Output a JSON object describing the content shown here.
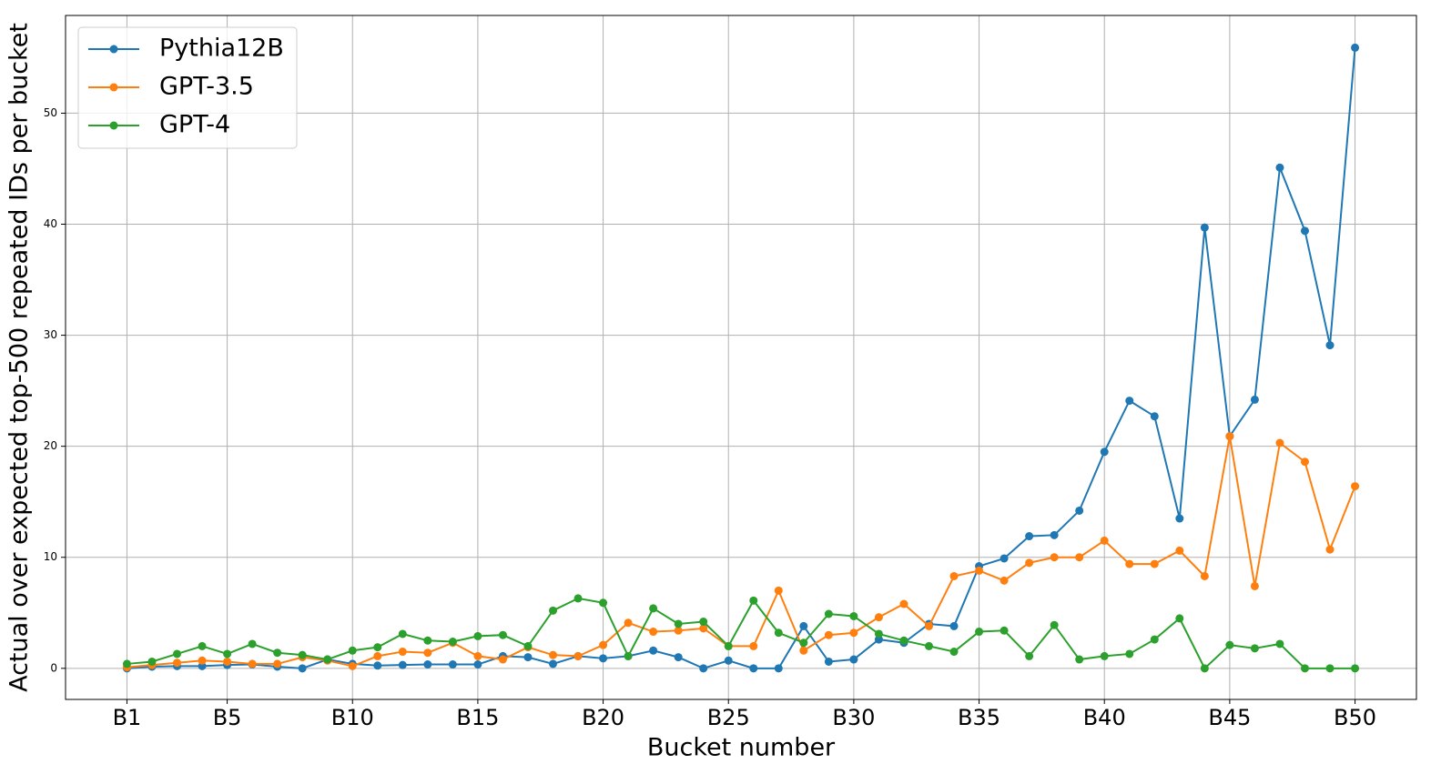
{
  "chart_data": {
    "type": "line",
    "xlabel": "Bucket number",
    "ylabel": "Actual over expected top-500 repeated IDs per bucket",
    "x": [
      1,
      2,
      3,
      4,
      5,
      6,
      7,
      8,
      9,
      10,
      11,
      12,
      13,
      14,
      15,
      16,
      17,
      18,
      19,
      20,
      21,
      22,
      23,
      24,
      25,
      26,
      27,
      28,
      29,
      30,
      31,
      32,
      33,
      34,
      35,
      36,
      37,
      38,
      39,
      40,
      41,
      42,
      43,
      44,
      45,
      46,
      47,
      48,
      49,
      50
    ],
    "series": [
      {
        "name": "Pythia12B",
        "color": "#1f77b4",
        "values": [
          0,
          0.15,
          0.2,
          0.2,
          0.3,
          0.35,
          0.15,
          0,
          0.8,
          0.4,
          0.25,
          0.3,
          0.35,
          0.35,
          0.35,
          1.1,
          1.0,
          0.4,
          1.1,
          0.9,
          1.1,
          1.6,
          1.0,
          0,
          0.7,
          0,
          0,
          3.8,
          0.6,
          0.8,
          2.6,
          2.3,
          4.0,
          3.8,
          9.2,
          9.9,
          11.9,
          12.0,
          14.2,
          19.5,
          24.1,
          22.7,
          13.5,
          39.7,
          20.9,
          24.2,
          45.1,
          39.4,
          29.1,
          55.9
        ]
      },
      {
        "name": "GPT-3.5",
        "color": "#ff7f0e",
        "values": [
          0.1,
          0.3,
          0.5,
          0.7,
          0.6,
          0.4,
          0.4,
          1.0,
          0.7,
          0.2,
          1.1,
          1.5,
          1.4,
          2.3,
          1.1,
          0.8,
          1.9,
          1.2,
          1.1,
          2.1,
          4.1,
          3.3,
          3.4,
          3.6,
          2.0,
          2.0,
          7.0,
          1.6,
          3.0,
          3.2,
          4.6,
          5.8,
          3.8,
          8.3,
          8.8,
          7.9,
          9.5,
          10.0,
          10.0,
          11.5,
          9.4,
          9.4,
          10.6,
          8.3,
          20.9,
          7.4,
          20.3,
          18.6,
          10.7,
          16.4
        ]
      },
      {
        "name": "GPT-4",
        "color": "#2ca02c",
        "values": [
          0.4,
          0.6,
          1.3,
          2.0,
          1.3,
          2.2,
          1.4,
          1.2,
          0.8,
          1.6,
          1.9,
          3.1,
          2.5,
          2.4,
          2.9,
          3.0,
          2.0,
          5.2,
          6.3,
          5.9,
          1.1,
          5.4,
          4.0,
          4.2,
          2.0,
          6.1,
          3.2,
          2.3,
          4.9,
          4.7,
          3.1,
          2.5,
          2.0,
          1.5,
          3.3,
          3.4,
          1.1,
          3.9,
          0.8,
          1.1,
          1.3,
          2.6,
          4.5,
          0,
          2.1,
          1.8,
          2.2,
          0,
          0,
          0
        ]
      }
    ],
    "xlim": [
      -1.45,
      52.45
    ],
    "xticks": [
      {
        "value": 1,
        "label": "B1"
      },
      {
        "value": 5,
        "label": "B5"
      },
      {
        "value": 10,
        "label": "B10"
      },
      {
        "value": 15,
        "label": "B15"
      },
      {
        "value": 20,
        "label": "B20"
      },
      {
        "value": 25,
        "label": "B25"
      },
      {
        "value": 30,
        "label": "B30"
      },
      {
        "value": 35,
        "label": "B35"
      },
      {
        "value": 40,
        "label": "B40"
      },
      {
        "value": 45,
        "label": "B45"
      },
      {
        "value": 50,
        "label": "B50"
      }
    ],
    "ylim": [
      -2.8,
      58.8
    ],
    "yticks": [
      0,
      10,
      20,
      30,
      40,
      50
    ],
    "grid": true,
    "legend": "upper left"
  }
}
